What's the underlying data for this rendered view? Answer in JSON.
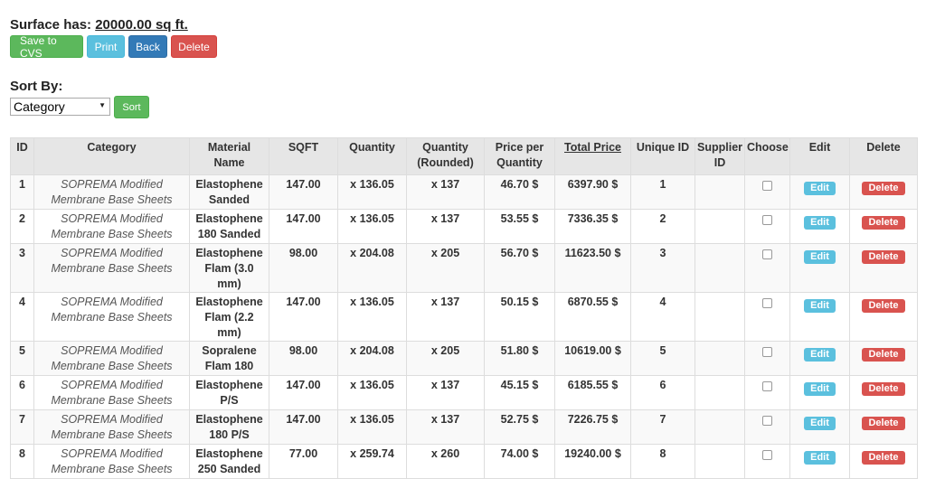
{
  "surface": {
    "label": "Surface has:",
    "value": "20000.00 sq ft."
  },
  "actions": {
    "save": "Save to CVS",
    "print": "Print",
    "back": "Back",
    "delete": "Delete"
  },
  "sort": {
    "label": "Sort By:",
    "selected": "Category",
    "button": "Sort"
  },
  "table": {
    "headers": {
      "id": "ID",
      "category": "Category",
      "material": "Material Name",
      "sqft": "SQFT",
      "quantity": "Quantity",
      "qty_rounded": "Quantity (Rounded)",
      "price_per": "Price per Quantity",
      "total": "Total Price",
      "unique": "Unique ID",
      "supplier": "Supplier ID",
      "choose": "Choose",
      "edit": "Edit",
      "delete": "Delete"
    },
    "edit_label": "Edit",
    "delete_label": "Delete",
    "rows": [
      {
        "id": "1",
        "category": "SOPREMA Modified Membrane Base Sheets",
        "material": "Elastophene Sanded",
        "sqft": "147.00",
        "quantity": "x 136.05",
        "qty_rounded": "x 137",
        "price_per": "46.70 $",
        "total": "6397.90 $",
        "unique": "1",
        "supplier": ""
      },
      {
        "id": "2",
        "category": "SOPREMA Modified Membrane Base Sheets",
        "material": "Elastophene 180 Sanded",
        "sqft": "147.00",
        "quantity": "x 136.05",
        "qty_rounded": "x 137",
        "price_per": "53.55 $",
        "total": "7336.35 $",
        "unique": "2",
        "supplier": ""
      },
      {
        "id": "3",
        "category": "SOPREMA Modified Membrane Base Sheets",
        "material": "Elastophene Flam (3.0 mm)",
        "sqft": "98.00",
        "quantity": "x 204.08",
        "qty_rounded": "x 205",
        "price_per": "56.70 $",
        "total": "11623.50 $",
        "unique": "3",
        "supplier": ""
      },
      {
        "id": "4",
        "category": "SOPREMA Modified Membrane Base Sheets",
        "material": "Elastophene Flam (2.2 mm)",
        "sqft": "147.00",
        "quantity": "x 136.05",
        "qty_rounded": "x 137",
        "price_per": "50.15 $",
        "total": "6870.55 $",
        "unique": "4",
        "supplier": ""
      },
      {
        "id": "5",
        "category": "SOPREMA Modified Membrane Base Sheets",
        "material": "Sopralene Flam 180",
        "sqft": "98.00",
        "quantity": "x 204.08",
        "qty_rounded": "x 205",
        "price_per": "51.80 $",
        "total": "10619.00 $",
        "unique": "5",
        "supplier": ""
      },
      {
        "id": "6",
        "category": "SOPREMA Modified Membrane Base Sheets",
        "material": "Elastophene P/S",
        "sqft": "147.00",
        "quantity": "x 136.05",
        "qty_rounded": "x 137",
        "price_per": "45.15 $",
        "total": "6185.55 $",
        "unique": "6",
        "supplier": ""
      },
      {
        "id": "7",
        "category": "SOPREMA Modified Membrane Base Sheets",
        "material": "Elastophene 180 P/S",
        "sqft": "147.00",
        "quantity": "x 136.05",
        "qty_rounded": "x 137",
        "price_per": "52.75 $",
        "total": "7226.75 $",
        "unique": "7",
        "supplier": ""
      },
      {
        "id": "8",
        "category": "SOPREMA Modified Membrane Base Sheets",
        "material": "Elastophene 250 Sanded",
        "sqft": "77.00",
        "quantity": "x 259.74",
        "qty_rounded": "x 260",
        "price_per": "74.00 $",
        "total": "19240.00 $",
        "unique": "8",
        "supplier": ""
      }
    ]
  },
  "colors": {
    "success": "#5cb85c",
    "info": "#5bc0de",
    "primary": "#337ab7",
    "danger": "#d9534f"
  }
}
